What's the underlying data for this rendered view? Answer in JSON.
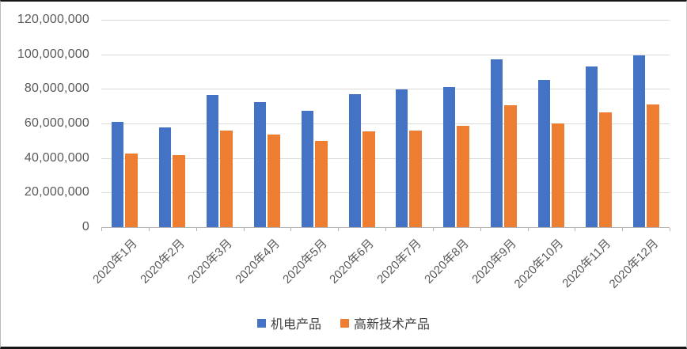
{
  "chart_data": {
    "type": "bar",
    "title": "",
    "categories": [
      "2020年1月",
      "2020年2月",
      "2020年3月",
      "2020年4月",
      "2020年5月",
      "2020年6月",
      "2020年7月",
      "2020年8月",
      "2020年9月",
      "2020年10月",
      "2020年11月",
      "2020年12月"
    ],
    "series": [
      {
        "name": "机电产品",
        "color": "#4472C4",
        "values": [
          61000000,
          57500000,
          76500000,
          72500000,
          67500000,
          77000000,
          79500000,
          81000000,
          97000000,
          85000000,
          93000000,
          99500000
        ]
      },
      {
        "name": "高新技术产品",
        "color": "#ED7D31",
        "values": [
          42500000,
          41500000,
          56000000,
          53500000,
          50000000,
          55500000,
          56000000,
          58500000,
          70500000,
          60000000,
          66500000,
          71000000
        ]
      }
    ],
    "xlabel": "",
    "ylabel": "",
    "ylim": [
      0,
      120000000
    ],
    "ytick_step": 20000000,
    "ytick_labels": [
      "0",
      "20,000,000",
      "40,000,000",
      "60,000,000",
      "80,000,000",
      "100,000,000",
      "120,000,000"
    ],
    "grid": true,
    "legend_position": "bottom",
    "colors": {
      "gridline": "#d9d9d9",
      "axis_line": "#b3b3b3",
      "tick_text": "#595959"
    }
  }
}
